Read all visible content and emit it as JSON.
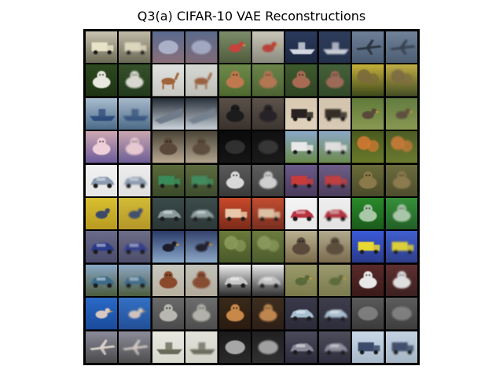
{
  "figure": {
    "title": "Q3(a) CIFAR-10 VAE Reconstructions"
  },
  "grid": {
    "rows": 10,
    "cols": 10,
    "layout": "pairs of original (left) and reconstruction (right)",
    "background": "#000000"
  },
  "tiles": [
    [
      {
        "subject": "truck",
        "sky": "#c9c3b0",
        "ground": "#6b6a55",
        "obj": "#e8e2c8",
        "shape": "box"
      },
      {
        "subject": "truck",
        "sky": "#bfb9a6",
        "ground": "#6a6955",
        "obj": "#dcd6bd",
        "shape": "box"
      },
      {
        "subject": "blurry scene",
        "sky": "#5a6a8f",
        "ground": "#8a6f7a",
        "obj": "#b8c0d8",
        "shape": "blob"
      },
      {
        "subject": "blurry scene",
        "sky": "#5c6b8c",
        "ground": "#7f6b78",
        "obj": "#aeb6cf",
        "shape": "blob"
      },
      {
        "subject": "bird",
        "sky": "#7c8c6a",
        "ground": "#4f5c3d",
        "obj": "#c8423a",
        "shape": "bird"
      },
      {
        "subject": "bird",
        "sky": "#c8c6b9",
        "ground": "#8a8a7d",
        "obj": "#b8423a",
        "shape": "bird"
      },
      {
        "subject": "ship",
        "sky": "#2b3a5c",
        "ground": "#1d2840",
        "obj": "#d4d8e2",
        "shape": "boat"
      },
      {
        "subject": "ship",
        "sky": "#2f3d5c",
        "ground": "#23304a",
        "obj": "#c8ccd6",
        "shape": "boat"
      },
      {
        "subject": "airplane",
        "sky": "#6c7f96",
        "ground": "#4b5c72",
        "obj": "#2c3440",
        "shape": "plane"
      },
      {
        "subject": "airplane",
        "sky": "#6f8298",
        "ground": "#4d5e73",
        "obj": "#36404d",
        "shape": "plane"
      }
    ],
    [
      {
        "subject": "cat",
        "sky": "#2d4a1f",
        "ground": "#1e3314",
        "obj": "#e8e8e0",
        "shape": "animal"
      },
      {
        "subject": "cat",
        "sky": "#35502a",
        "ground": "#233a1b",
        "obj": "#d8d8d0",
        "shape": "animal"
      },
      {
        "subject": "deer",
        "sky": "#dfe2e0",
        "ground": "#c8c8c2",
        "obj": "#a0643a",
        "shape": "deer"
      },
      {
        "subject": "deer",
        "sky": "#d6d8d4",
        "ground": "#bfbfb8",
        "obj": "#9a6240",
        "shape": "deer"
      },
      {
        "subject": "dog",
        "sky": "#6e8a4a",
        "ground": "#4e6a30",
        "obj": "#c07850",
        "shape": "animal"
      },
      {
        "subject": "dog",
        "sky": "#6a844a",
        "ground": "#4d6333",
        "obj": "#b27652",
        "shape": "animal"
      },
      {
        "subject": "bird",
        "sky": "#3f5a2e",
        "ground": "#2f4522",
        "obj": "#a86a52",
        "shape": "animal"
      },
      {
        "subject": "bird",
        "sky": "#44603a",
        "ground": "#334a28",
        "obj": "#9d6a58",
        "shape": "animal"
      },
      {
        "subject": "deer",
        "sky": "#c6b03a",
        "ground": "#3e4a1c",
        "obj": "#7a6a3a",
        "shape": "tree"
      },
      {
        "subject": "deer",
        "sky": "#c0ad45",
        "ground": "#454f25",
        "obj": "#7d6c42",
        "shape": "tree"
      }
    ],
    [
      {
        "subject": "ship",
        "sky": "#a8bccf",
        "ground": "#4a6a88",
        "obj": "#2f4d7c",
        "shape": "boat"
      },
      {
        "subject": "ship",
        "sky": "#a6b9cb",
        "ground": "#4c6a86",
        "obj": "#3a567f",
        "shape": "boat"
      },
      {
        "subject": "airplane",
        "sky": "#222a34",
        "ground": "#cfd6de",
        "obj": "#6f7c8a",
        "shape": "wing"
      },
      {
        "subject": "airplane",
        "sky": "#2a323c",
        "ground": "#c7ced6",
        "obj": "#75818e",
        "shape": "wing"
      },
      {
        "subject": "cat",
        "sky": "#5a5048",
        "ground": "#3a322c",
        "obj": "#1c1a1c",
        "shape": "animal"
      },
      {
        "subject": "cat",
        "sky": "#5d534b",
        "ground": "#3d3530",
        "obj": "#252226",
        "shape": "animal"
      },
      {
        "subject": "truck",
        "sky": "#d8c8b0",
        "ground": "#e0d2bd",
        "obj": "#2a2420",
        "shape": "box"
      },
      {
        "subject": "truck",
        "sky": "#d2c3ad",
        "ground": "#d8cab6",
        "obj": "#342d28",
        "shape": "box"
      },
      {
        "subject": "bird",
        "sky": "#5f7a3a",
        "ground": "#8a9a52",
        "obj": "#5a4a3a",
        "shape": "bird"
      },
      {
        "subject": "bird",
        "sky": "#627c40",
        "ground": "#899852",
        "obj": "#5e4f40",
        "shape": "bird"
      }
    ],
    [
      {
        "subject": "cat",
        "sky": "#cfa8b2",
        "ground": "#6a5a9a",
        "obj": "#f0d0d8",
        "shape": "animal"
      },
      {
        "subject": "cat",
        "sky": "#c9a6b0",
        "ground": "#6d5e96",
        "obj": "#e6c8d0",
        "shape": "animal"
      },
      {
        "subject": "horse",
        "sky": "#4a4438",
        "ground": "#b8a890",
        "obj": "#5a4a3a",
        "shape": "animal"
      },
      {
        "subject": "horse",
        "sky": "#4c4639",
        "ground": "#b1a38c",
        "obj": "#5c4d3e",
        "shape": "animal"
      },
      {
        "subject": "dark scene",
        "sky": "#0a0a0a",
        "ground": "#151515",
        "obj": "#3a3a3a",
        "shape": "blob"
      },
      {
        "subject": "dark scene",
        "sky": "#101010",
        "ground": "#1a1a1a",
        "obj": "#404040",
        "shape": "blob"
      },
      {
        "subject": "truck",
        "sky": "#8aa8c8",
        "ground": "#6a8a4a",
        "obj": "#e8e8e8",
        "shape": "box"
      },
      {
        "subject": "truck",
        "sky": "#8ca8c4",
        "ground": "#6c8a4e",
        "obj": "#dedede",
        "shape": "box"
      },
      {
        "subject": "frog",
        "sky": "#4a5a20",
        "ground": "#6a7a2a",
        "obj": "#d07830",
        "shape": "tree"
      },
      {
        "subject": "frog",
        "sky": "#4d5c25",
        "ground": "#6b7a2f",
        "obj": "#c97a38",
        "shape": "tree"
      }
    ],
    [
      {
        "subject": "automobile",
        "sky": "#f2f2f2",
        "ground": "#e6e6e6",
        "obj": "#8a9ab0",
        "shape": "car"
      },
      {
        "subject": "automobile",
        "sky": "#ececec",
        "ground": "#dfdfdf",
        "obj": "#8d9cb0",
        "shape": "car"
      },
      {
        "subject": "truck",
        "sky": "#5a6a3a",
        "ground": "#3a4a2a",
        "obj": "#3a8a5a",
        "shape": "box"
      },
      {
        "subject": "truck",
        "sky": "#5c6b3e",
        "ground": "#3d4c2e",
        "obj": "#428a5e",
        "shape": "box"
      },
      {
        "subject": "dog",
        "sky": "#5a5a5a",
        "ground": "#3a3a3a",
        "obj": "#d8d8d8",
        "shape": "animal"
      },
      {
        "subject": "dog",
        "sky": "#5d5d5d",
        "ground": "#3e3e3e",
        "obj": "#cfcfcf",
        "shape": "animal"
      },
      {
        "subject": "truck",
        "sky": "#6a5a8a",
        "ground": "#4a3a5a",
        "obj": "#c83a3a",
        "shape": "box"
      },
      {
        "subject": "truck",
        "sky": "#6c5d88",
        "ground": "#4d3e5c",
        "obj": "#be4040",
        "shape": "box"
      },
      {
        "subject": "frog",
        "sky": "#6a6a3a",
        "ground": "#4a4a2a",
        "obj": "#8a7a4a",
        "shape": "animal"
      },
      {
        "subject": "frog",
        "sky": "#6c6c3e",
        "ground": "#4d4d2e",
        "obj": "#8c7c4e",
        "shape": "animal"
      }
    ],
    [
      {
        "subject": "bird",
        "sky": "#d8c030",
        "ground": "#b89a20",
        "obj": "#3a4a6a",
        "shape": "bird"
      },
      {
        "subject": "bird",
        "sky": "#d2bb36",
        "ground": "#b39628",
        "obj": "#42506e",
        "shape": "bird"
      },
      {
        "subject": "automobile",
        "sky": "#3a4a4a",
        "ground": "#2a3434",
        "obj": "#8a9a9a",
        "shape": "car"
      },
      {
        "subject": "automobile",
        "sky": "#3d4c4c",
        "ground": "#2d3737",
        "obj": "#8d9c9c",
        "shape": "car"
      },
      {
        "subject": "truck",
        "sky": "#c84a2a",
        "ground": "#7a2a1a",
        "obj": "#e8c8a8",
        "shape": "box"
      },
      {
        "subject": "truck",
        "sky": "#c24e30",
        "ground": "#782e20",
        "obj": "#dcc0a4",
        "shape": "box"
      },
      {
        "subject": "automobile",
        "sky": "#f4f4f4",
        "ground": "#e8e8e8",
        "obj": "#b83040",
        "shape": "car"
      },
      {
        "subject": "automobile",
        "sky": "#eeeeee",
        "ground": "#e2e2e2",
        "obj": "#b0363f",
        "shape": "car"
      },
      {
        "subject": "frog",
        "sky": "#2a8a2a",
        "ground": "#1a5a1a",
        "obj": "#a8c8a8",
        "shape": "animal"
      },
      {
        "subject": "frog",
        "sky": "#36903a",
        "ground": "#225e26",
        "obj": "#aac6aa",
        "shape": "animal"
      }
    ],
    [
      {
        "subject": "automobile",
        "sky": "#6a6a8a",
        "ground": "#4a4a6a",
        "obj": "#2a3a8a",
        "shape": "car"
      },
      {
        "subject": "automobile",
        "sky": "#6d6d88",
        "ground": "#4d4d6b",
        "obj": "#34418a",
        "shape": "car"
      },
      {
        "subject": "bird",
        "sky": "#2a3a6a",
        "ground": "#8aa8c8",
        "obj": "#1a1a2a",
        "shape": "bird"
      },
      {
        "subject": "bird",
        "sky": "#34436c",
        "ground": "#8da8c6",
        "obj": "#24242f",
        "shape": "bird"
      },
      {
        "subject": "frog",
        "sky": "#6a7a3a",
        "ground": "#4a5a2a",
        "obj": "#8a9a5a",
        "shape": "tree"
      },
      {
        "subject": "frog",
        "sky": "#6c7b3e",
        "ground": "#4d5c2e",
        "obj": "#8c9b5e",
        "shape": "tree"
      },
      {
        "subject": "horse",
        "sky": "#b8b090",
        "ground": "#7a6a4a",
        "obj": "#5a4a3a",
        "shape": "animal"
      },
      {
        "subject": "horse",
        "sky": "#b2aa8d",
        "ground": "#7a6b4e",
        "obj": "#5d4d3e",
        "shape": "animal"
      },
      {
        "subject": "truck",
        "sky": "#3a5ad8",
        "ground": "#2a3a8a",
        "obj": "#e8d830",
        "shape": "box"
      },
      {
        "subject": "truck",
        "sky": "#405ecf",
        "ground": "#2f3f89",
        "obj": "#dccf3a",
        "shape": "box"
      }
    ],
    [
      {
        "subject": "automobile",
        "sky": "#8aa8c8",
        "ground": "#4a5a3a",
        "obj": "#3a6a8a",
        "shape": "car"
      },
      {
        "subject": "automobile",
        "sky": "#8ca7c4",
        "ground": "#4d5c3e",
        "obj": "#426d8a",
        "shape": "car"
      },
      {
        "subject": "horse",
        "sky": "#c8c8c0",
        "ground": "#b8b0a0",
        "obj": "#8a4a2a",
        "shape": "animal"
      },
      {
        "subject": "horse",
        "sky": "#c2c2ba",
        "ground": "#b2aa9b",
        "obj": "#874e30",
        "shape": "animal"
      },
      {
        "subject": "automobile",
        "sky": "#f0f0f0",
        "ground": "#2a2a2a",
        "obj": "#c8c8c8",
        "shape": "car"
      },
      {
        "subject": "automobile",
        "sky": "#e8e8e8",
        "ground": "#303030",
        "obj": "#c2c2c2",
        "shape": "car"
      },
      {
        "subject": "bird",
        "sky": "#9a9a6a",
        "ground": "#7a7a4a",
        "obj": "#5a6a3a",
        "shape": "bird"
      },
      {
        "subject": "bird",
        "sky": "#9a9a6e",
        "ground": "#7a7a4e",
        "obj": "#5d6c3e",
        "shape": "bird"
      },
      {
        "subject": "horse",
        "sky": "#5a2a2a",
        "ground": "#3a1a1a",
        "obj": "#e8e8e8",
        "shape": "animal"
      },
      {
        "subject": "horse",
        "sky": "#5d3030",
        "ground": "#3d2020",
        "obj": "#dedede",
        "shape": "animal"
      }
    ],
    [
      {
        "subject": "bird",
        "sky": "#2a6ac8",
        "ground": "#1a4a9a",
        "obj": "#d8c8c0",
        "shape": "bird"
      },
      {
        "subject": "bird",
        "sky": "#3470c4",
        "ground": "#234f96",
        "obj": "#d0c2bc",
        "shape": "bird"
      },
      {
        "subject": "cat",
        "sky": "#6a6a6a",
        "ground": "#4a4a4a",
        "obj": "#b8b8b0",
        "shape": "animal"
      },
      {
        "subject": "cat",
        "sky": "#6d6d6d",
        "ground": "#4d4d4d",
        "obj": "#b2b2aa",
        "shape": "animal"
      },
      {
        "subject": "cat",
        "sky": "#3a2a1a",
        "ground": "#2a1a10",
        "obj": "#c8884a",
        "shape": "animal"
      },
      {
        "subject": "cat",
        "sky": "#3d2e20",
        "ground": "#2d1f16",
        "obj": "#be8650",
        "shape": "animal"
      },
      {
        "subject": "automobile",
        "sky": "#3a3a4a",
        "ground": "#2a2a38",
        "obj": "#a8c0d0",
        "shape": "car"
      },
      {
        "subject": "automobile",
        "sky": "#3d3d4c",
        "ground": "#2d2d3b",
        "obj": "#a8bece",
        "shape": "car"
      },
      {
        "subject": "blurry scene",
        "sky": "#5a5a5a",
        "ground": "#3a3a3a",
        "obj": "#8a8a8a",
        "shape": "blob"
      },
      {
        "subject": "blurry scene",
        "sky": "#5d5d5d",
        "ground": "#3d3d3d",
        "obj": "#8c8c8c",
        "shape": "blob"
      }
    ],
    [
      {
        "subject": "airplane",
        "sky": "#8a8a9a",
        "ground": "#4a4a4a",
        "obj": "#d8d0c8",
        "shape": "plane"
      },
      {
        "subject": "airplane",
        "sky": "#8c8c9a",
        "ground": "#4d4d4d",
        "obj": "#d0c9c2",
        "shape": "plane"
      },
      {
        "subject": "ship",
        "sky": "#e8e8e0",
        "ground": "#d8d8cf",
        "obj": "#6a6a5a",
        "shape": "boat"
      },
      {
        "subject": "ship",
        "sky": "#e2e2da",
        "ground": "#d2d2c9",
        "obj": "#6d6d5e",
        "shape": "boat"
      },
      {
        "subject": "dark scene",
        "sky": "#1a1a1a",
        "ground": "#2a2a2a",
        "obj": "#c8c8c8",
        "shape": "blob"
      },
      {
        "subject": "dark scene",
        "sky": "#202020",
        "ground": "#303030",
        "obj": "#bebebe",
        "shape": "blob"
      },
      {
        "subject": "automobile",
        "sky": "#4a4a5a",
        "ground": "#2a2a3a",
        "obj": "#8a8a9a",
        "shape": "car"
      },
      {
        "subject": "automobile",
        "sky": "#4d4d5c",
        "ground": "#2d2d3d",
        "obj": "#8c8c9b",
        "shape": "car"
      },
      {
        "subject": "truck",
        "sky": "#c8d8e8",
        "ground": "#a8b8c8",
        "obj": "#3a4a6a",
        "shape": "box"
      },
      {
        "subject": "truck",
        "sky": "#c2d2e2",
        "ground": "#a6b5c4",
        "obj": "#42506c",
        "shape": "box"
      }
    ]
  ]
}
